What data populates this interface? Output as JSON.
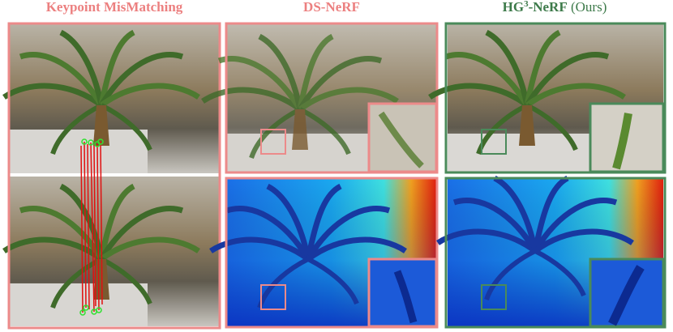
{
  "columns": [
    {
      "title": "Keypoint MisMatching"
    },
    {
      "title": "DS-NeRF"
    },
    {
      "title_parts": [
        "HG",
        "3",
        "-NeRF",
        " (Ours)"
      ]
    }
  ]
}
